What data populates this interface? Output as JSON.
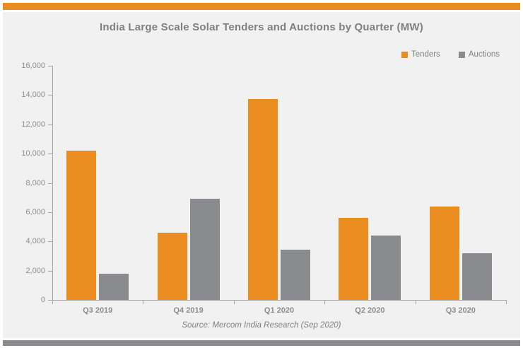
{
  "header": {
    "title": "India Large Scale Solar Tenders and Auctions by Quarter (MW)"
  },
  "source": "Source: Mercom India Research (Sep 2020)",
  "colors": {
    "accent_orange": "#EB8C21",
    "accent_gray": "#8A8B8E",
    "panel_bg": "#F1F1F2",
    "axis_line": "#A6A6A6",
    "tick_text": "#8C8C8C",
    "title_text": "#7F7F7F"
  },
  "chart_data": {
    "type": "bar",
    "title": "India Large Scale Solar Tenders and Auctions by Quarter (MW)",
    "categories": [
      "Q3 2019",
      "Q4 2019",
      "Q1 2020",
      "Q2 2020",
      "Q3 2020"
    ],
    "series": [
      {
        "name": "Tenders",
        "color": "#EB8C21",
        "values": [
          10200,
          4600,
          13750,
          5600,
          6400
        ]
      },
      {
        "name": "Auctions",
        "color": "#8A8B8E",
        "values": [
          1800,
          6900,
          3450,
          4400,
          3200
        ]
      }
    ],
    "xlabel": "",
    "ylabel": "",
    "ylim": [
      0,
      16000
    ],
    "ytick_step": 2000,
    "ytick_labels": [
      "0",
      "2,000",
      "4,000",
      "6,000",
      "8,000",
      "10,000",
      "12,000",
      "14,000",
      "16,000"
    ],
    "grid": false,
    "legend_position": "top-right"
  }
}
